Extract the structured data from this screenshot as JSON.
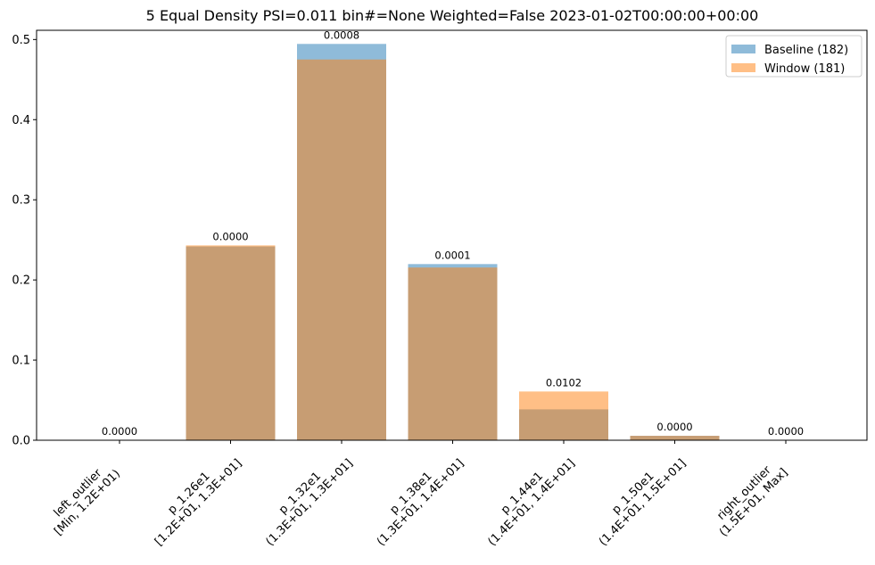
{
  "chart_data": {
    "type": "bar",
    "title": "5 Equal Density PSI=0.011 bin#=None Weighted=False 2023-01-02T00:00:00+00:00",
    "xlabel": "",
    "ylabel": "",
    "ylim": [
      0,
      0.5115
    ],
    "yticks": [
      "0.0",
      "0.1",
      "0.2",
      "0.3",
      "0.4",
      "0.5"
    ],
    "categories": [
      [
        "left_outlier",
        "[Min, 1.2E+01)"
      ],
      [
        "p_1.26e1",
        "[1.2E+01, 1.3E+01]"
      ],
      [
        "p_1.32e1",
        "(1.3E+01, 1.3E+01]"
      ],
      [
        "p_1.38e1",
        "(1.3E+01, 1.4E+01]"
      ],
      [
        "p_1.44e1",
        "(1.4E+01, 1.4E+01]"
      ],
      [
        "p_1.50e1",
        "(1.4E+01, 1.5E+01]"
      ],
      [
        "right_outlier",
        "(1.5E+01, Max]"
      ]
    ],
    "series": [
      {
        "name": "Baseline (182)",
        "color": "#1f77b4",
        "alpha": 0.5,
        "values": [
          0.0,
          0.2418,
          0.4945,
          0.2198,
          0.0385,
          0.0055,
          0.0
        ]
      },
      {
        "name": "Window (181)",
        "color": "#ff7f0e",
        "alpha": 0.5,
        "values": [
          0.0,
          0.2431,
          0.4751,
          0.2155,
          0.0608,
          0.0055,
          0.0
        ]
      }
    ],
    "annotations": [
      "0.0000",
      "0.0000",
      "0.0008",
      "0.0001",
      "0.0102",
      "0.0000",
      "0.0000"
    ],
    "legend": {
      "position": "top-right"
    },
    "grid": false
  }
}
